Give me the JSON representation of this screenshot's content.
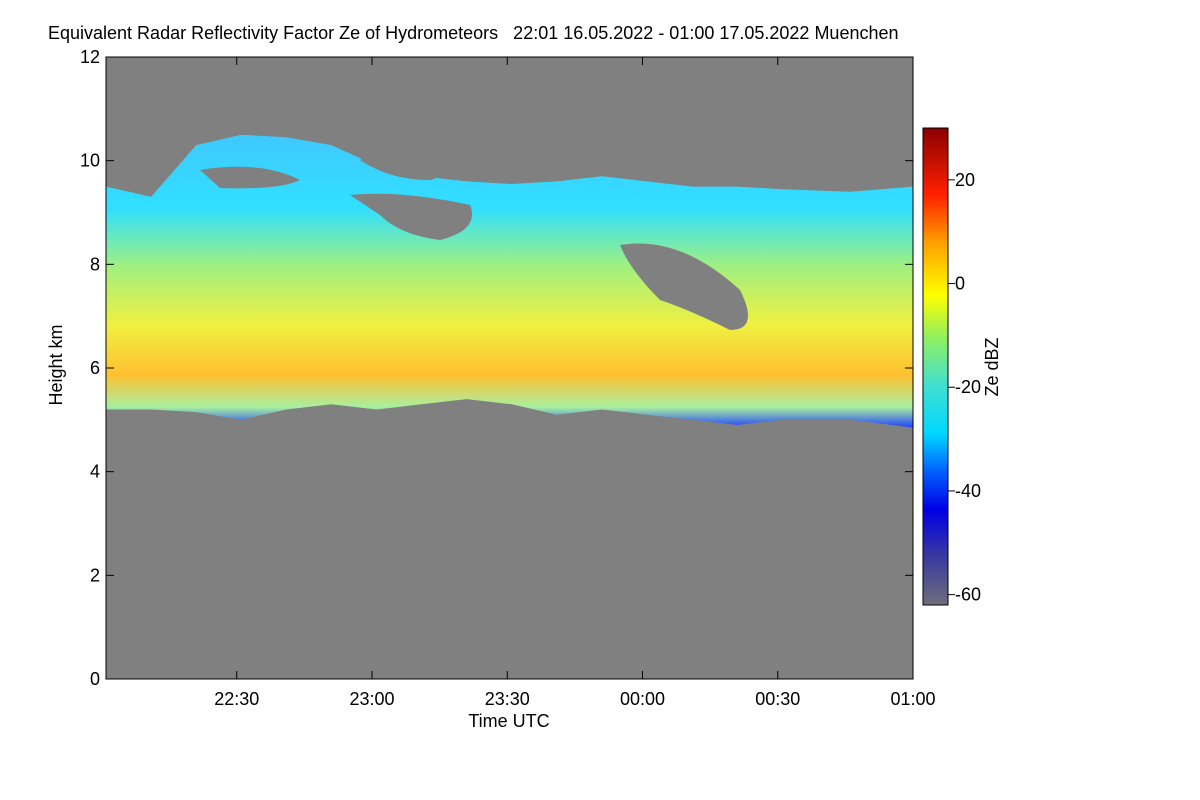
{
  "chart_data": {
    "type": "heatmap",
    "title": "Equivalent Radar Reflectivity Factor Ze of Hydrometeors   22:01 16.05.2022 - 01:00 17.05.2022 Muenchen",
    "xlabel": "Time UTC",
    "ylabel": "Height km",
    "colorbar_label": "Ze dBZ",
    "x_ticks": [
      "22:30",
      "23:00",
      "23:30",
      "00:00",
      "00:30",
      "01:00"
    ],
    "x_tick_minutes": [
      29,
      59,
      89,
      119,
      149,
      179
    ],
    "xlim_minutes": [
      0,
      179
    ],
    "y_ticks": [
      0,
      2,
      4,
      6,
      8,
      10,
      12
    ],
    "ylim": [
      0,
      12
    ],
    "colorbar_ticks": [
      20,
      0,
      -20,
      -40,
      -60
    ],
    "colorbar_range": [
      -62,
      30
    ],
    "background_color": "#808080",
    "cloud_layer": {
      "base_km": [
        5.2,
        5.2,
        5.15,
        5.0,
        5.2,
        5.3,
        5.2,
        5.3,
        5.4,
        5.3,
        5.1,
        5.2,
        5.1,
        5.0,
        4.9,
        5.0,
        5.0,
        4.85
      ],
      "top_km": [
        9.5,
        9.3,
        10.3,
        10.5,
        10.45,
        10.3,
        9.9,
        9.7,
        9.6,
        9.55,
        9.6,
        9.7,
        9.6,
        9.5,
        9.5,
        9.45,
        9.4,
        9.5
      ],
      "time_minutes": [
        0,
        10,
        20,
        30,
        40,
        50,
        60,
        70,
        80,
        90,
        100,
        110,
        120,
        130,
        140,
        150,
        165,
        179
      ]
    }
  }
}
